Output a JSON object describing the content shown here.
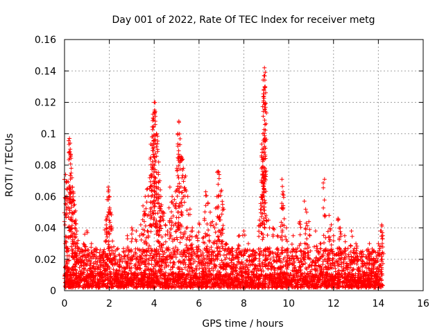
{
  "chart_data": {
    "type": "scatter",
    "title": "Day 001 of 2022, Rate Of TEC Index for receiver metg",
    "xlabel": "GPS time / hours",
    "ylabel": "ROTI / TECUs",
    "xlim": [
      0,
      16
    ],
    "ylim": [
      0,
      0.16
    ],
    "x_ticks": [
      0,
      2,
      4,
      6,
      8,
      10,
      12,
      14,
      16
    ],
    "x_tick_labels": [
      "0",
      "2",
      "4",
      "6",
      "8",
      "10",
      "12",
      "14",
      "16"
    ],
    "y_ticks": [
      0,
      0.02,
      0.04,
      0.06,
      0.08,
      0.1,
      0.12,
      0.14,
      0.16
    ],
    "y_tick_labels": [
      "0",
      "0.02",
      "0.04",
      "0.06",
      "0.08",
      "0.1",
      "0.12",
      "0.14",
      "0.16"
    ],
    "grid": true,
    "marker": "+",
    "color": "#ff0000",
    "series": [
      {
        "name": "ROTI",
        "points": [
          [
            0.05,
            0.074
          ],
          [
            0.08,
            0.069
          ],
          [
            0.1,
            0.06
          ],
          [
            0.12,
            0.02
          ],
          [
            0.15,
            0.027
          ],
          [
            0.22,
            0.097
          ],
          [
            0.25,
            0.094
          ],
          [
            0.28,
            0.087
          ],
          [
            0.3,
            0.078
          ],
          [
            0.33,
            0.072
          ],
          [
            0.36,
            0.066
          ],
          [
            0.4,
            0.062
          ],
          [
            0.45,
            0.055
          ],
          [
            0.5,
            0.045
          ],
          [
            0.55,
            0.038
          ],
          [
            0.6,
            0.032
          ],
          [
            0.7,
            0.025
          ],
          [
            0.85,
            0.03
          ],
          [
            0.9,
            0.036
          ],
          [
            1.0,
            0.038
          ],
          [
            1.2,
            0.03
          ],
          [
            1.4,
            0.027
          ],
          [
            1.6,
            0.026
          ],
          [
            1.75,
            0.025
          ],
          [
            1.85,
            0.045
          ],
          [
            1.9,
            0.058
          ],
          [
            1.95,
            0.066
          ],
          [
            2.0,
            0.06
          ],
          [
            2.05,
            0.05
          ],
          [
            2.1,
            0.04
          ],
          [
            2.2,
            0.028
          ],
          [
            2.5,
            0.02
          ],
          [
            2.8,
            0.035
          ],
          [
            3.0,
            0.04
          ],
          [
            3.2,
            0.038
          ],
          [
            3.4,
            0.042
          ],
          [
            3.5,
            0.054
          ],
          [
            3.6,
            0.06
          ],
          [
            3.7,
            0.065
          ],
          [
            3.8,
            0.072
          ],
          [
            3.85,
            0.085
          ],
          [
            3.9,
            0.098
          ],
          [
            3.95,
            0.11
          ],
          [
            4.0,
            0.12
          ],
          [
            4.02,
            0.115
          ],
          [
            4.05,
            0.108
          ],
          [
            4.1,
            0.1
          ],
          [
            4.15,
            0.09
          ],
          [
            4.2,
            0.082
          ],
          [
            4.25,
            0.07
          ],
          [
            4.3,
            0.06
          ],
          [
            4.4,
            0.05
          ],
          [
            4.5,
            0.042
          ],
          [
            4.6,
            0.038
          ],
          [
            4.7,
            0.066
          ],
          [
            4.8,
            0.06
          ],
          [
            4.9,
            0.058
          ],
          [
            5.0,
            0.064
          ],
          [
            5.05,
            0.1
          ],
          [
            5.1,
            0.108
          ],
          [
            5.15,
            0.093
          ],
          [
            5.2,
            0.085
          ],
          [
            5.3,
            0.078
          ],
          [
            5.4,
            0.073
          ],
          [
            5.5,
            0.06
          ],
          [
            5.6,
            0.052
          ],
          [
            5.7,
            0.04
          ],
          [
            5.9,
            0.035
          ],
          [
            6.0,
            0.043
          ],
          [
            6.2,
            0.034
          ],
          [
            6.3,
            0.063
          ],
          [
            6.4,
            0.056
          ],
          [
            6.5,
            0.05
          ],
          [
            6.6,
            0.044
          ],
          [
            6.7,
            0.04
          ],
          [
            6.8,
            0.06
          ],
          [
            6.85,
            0.076
          ],
          [
            6.9,
            0.074
          ],
          [
            7.0,
            0.064
          ],
          [
            7.05,
            0.055
          ],
          [
            7.2,
            0.03
          ],
          [
            7.5,
            0.025
          ],
          [
            7.8,
            0.035
          ],
          [
            8.0,
            0.038
          ],
          [
            8.2,
            0.03
          ],
          [
            8.4,
            0.025
          ],
          [
            8.7,
            0.045
          ],
          [
            8.8,
            0.085
          ],
          [
            8.82,
            0.09
          ],
          [
            8.85,
            0.1
          ],
          [
            8.87,
            0.12
          ],
          [
            8.9,
            0.137
          ],
          [
            8.92,
            0.142
          ],
          [
            8.95,
            0.13
          ],
          [
            8.97,
            0.056
          ],
          [
            9.1,
            0.045
          ],
          [
            9.3,
            0.04
          ],
          [
            9.5,
            0.035
          ],
          [
            9.7,
            0.071
          ],
          [
            9.75,
            0.063
          ],
          [
            9.9,
            0.04
          ],
          [
            10.2,
            0.035
          ],
          [
            10.5,
            0.044
          ],
          [
            10.7,
            0.057
          ],
          [
            10.8,
            0.05
          ],
          [
            10.9,
            0.044
          ],
          [
            11.2,
            0.038
          ],
          [
            11.4,
            0.03
          ],
          [
            11.6,
            0.071
          ],
          [
            11.8,
            0.048
          ],
          [
            11.9,
            0.042
          ],
          [
            12.0,
            0.035
          ],
          [
            12.2,
            0.046
          ],
          [
            12.3,
            0.04
          ],
          [
            12.5,
            0.035
          ],
          [
            12.8,
            0.038
          ],
          [
            13.0,
            0.03
          ],
          [
            13.3,
            0.025
          ],
          [
            13.6,
            0.03
          ],
          [
            13.8,
            0.02
          ],
          [
            14.0,
            0.03
          ],
          [
            14.1,
            0.038
          ],
          [
            14.15,
            0.042
          ],
          [
            14.2,
            0.035
          ]
        ]
      }
    ],
    "dense_band": {
      "x_range": [
        0,
        14.2
      ],
      "y_typical_max": 0.025,
      "description": "dense cloud of points between 0 and about 0.025 across the whole time range"
    }
  }
}
